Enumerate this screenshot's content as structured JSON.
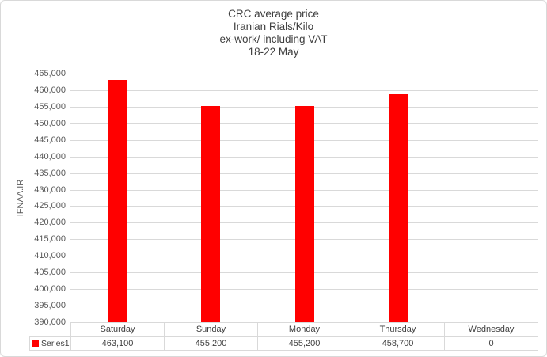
{
  "chart": {
    "title_lines": [
      "CRC average price",
      "Iranian Rials/Kilo",
      "ex-work/ including VAT",
      "18-22 May"
    ],
    "y_axis_title": "IFNAA.IR",
    "legend_label": "Series1"
  },
  "chart_data": {
    "type": "bar",
    "title": "CRC average price Iranian Rials/Kilo ex-work/ including VAT 18-22 May",
    "categories": [
      "Saturday",
      "Sunday",
      "Monday",
      "Thursday",
      "Wednesday"
    ],
    "series": [
      {
        "name": "Series1",
        "values": [
          463100,
          455200,
          455200,
          458700,
          0
        ]
      }
    ],
    "table_values_display": [
      "463,100",
      "455,200",
      "455,200",
      "458,700",
      "0"
    ],
    "xlabel": "",
    "ylabel": "IFNAA.IR",
    "ylim": [
      390000,
      465000
    ],
    "ytick_step": 5000,
    "ytick_labels": [
      "465,000",
      "460,000",
      "455,000",
      "450,000",
      "445,000",
      "440,000",
      "435,000",
      "430,000",
      "425,000",
      "420,000",
      "415,000",
      "410,000",
      "405,000",
      "400,000",
      "395,000",
      "390,000"
    ],
    "grid": true,
    "legend_entries": [
      "Series1"
    ],
    "legend_position": "data-table-left",
    "colors": {
      "bar": "#ff0000",
      "gridline": "#d9d9d9",
      "border": "#d9d9d9",
      "text": "#595959",
      "table_text": "#404040"
    }
  }
}
